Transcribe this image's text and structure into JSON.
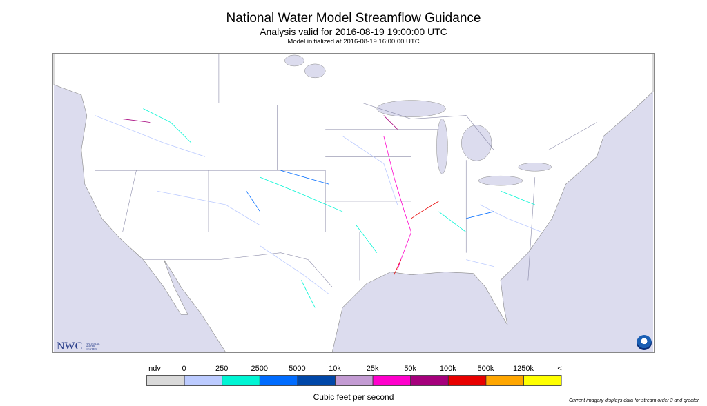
{
  "header": {
    "title": "National Water Model Streamflow Guidance",
    "analysis": "Analysis valid for 2016-08-19 19:00:00 UTC",
    "initialized": "Model initialized at 2016-08-19 16:00:00 UTC"
  },
  "legend": {
    "labels": [
      "ndv",
      "0",
      "250",
      "2500",
      "5000",
      "10k",
      "25k",
      "50k",
      "100k",
      "500k",
      "1250k",
      "<"
    ],
    "colors": [
      "#d9d9d9",
      "#bccbff",
      "#00f5d4",
      "#006cff",
      "#0047a8",
      "#c39bd3",
      "#ff00cc",
      "#a5007c",
      "#e80000",
      "#ffa600",
      "#ffff00"
    ],
    "unit": "Cubic feet per second"
  },
  "footer": {
    "note": "Current imagery displays data for stream order 3 and greater."
  },
  "logos": {
    "nwc": "NWC",
    "nwc_sub": "NATIONAL WATER CENTER",
    "noaa": "NOAA"
  },
  "map": {
    "ocean_color": "#dcdcee",
    "land_color": "#ffffff",
    "border_color": "#8a8aa8"
  }
}
